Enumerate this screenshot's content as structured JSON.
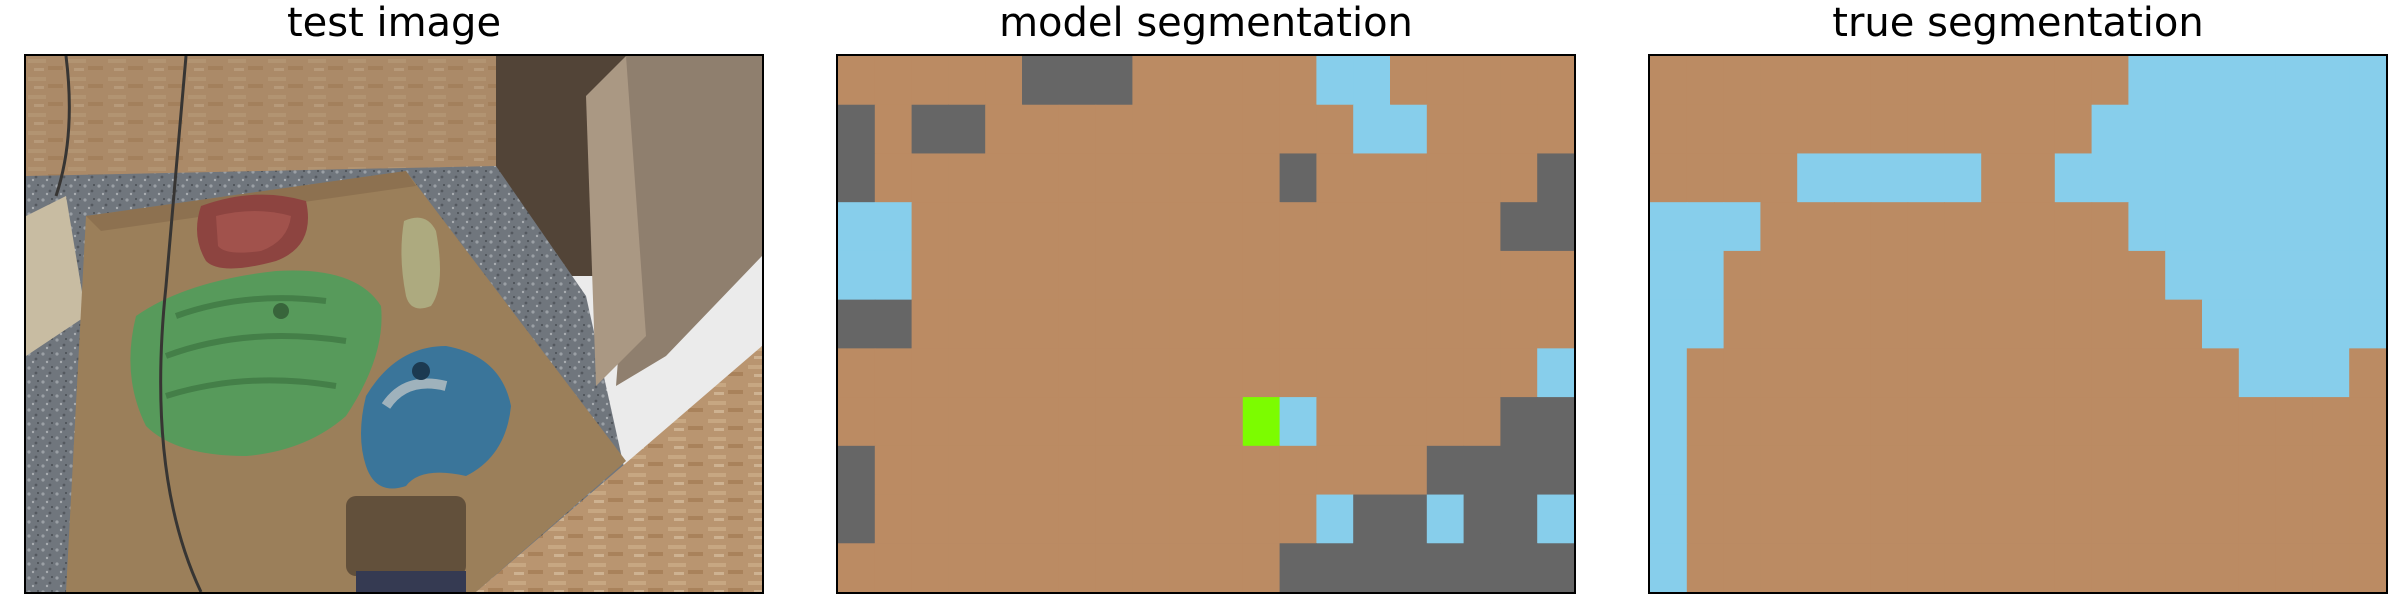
{
  "panels": [
    {
      "title": "test image"
    },
    {
      "title": "model segmentation"
    },
    {
      "title": "true segmentation"
    }
  ],
  "colors": {
    "background": "#bb8b63",
    "gray": "#666666",
    "sky": "#87ceeb",
    "green": "#7cfc00"
  },
  "icons": {
    "photo_objects": [
      "red-hold",
      "yellow-hold",
      "green-hold",
      "blue-hold",
      "wooden-board",
      "gravel",
      "osb-wall",
      "camera-shadow"
    ]
  },
  "model_grid": {
    "rows": 11,
    "cols": 20,
    "cells": [
      "BBBBBGGGBBBBBSSBBBBB",
      "GBGGBBBBBBBBBBSSBBBB",
      "GBBBBBBBBBBBGBBBBBBG",
      "SSBBBBBBBBBBBBBBBBGG",
      "SSBBBBBBBBBBBBBBBBBB",
      "GGBBBBBBBBBBBBBBBBBB",
      "BBBBBBBBBBBBBBBBBBBS",
      "BBBBBBBBBBBLSBBBBBGG",
      "GBBBBBBBBBBBBBBBGGGG",
      "GBBBBBBBBBBBBSGGSGGS",
      "BBBBBBBBBBBBGGGGGGGG"
    ]
  },
  "true_grid": {
    "rows": 11,
    "cols": 20,
    "cells": [
      "BBBBBBBBBBBBBSSSSSSS",
      "BBBBBBBBBBBBSSSSSSSS",
      "BBBBSSSSSBBSSSSSSSSS",
      "SSSBBBBBBBBBBSSSSSSS",
      "SSBBBBBBBBBBBBSSSSSS",
      "SSBBBBBBBBBBBBBSSSSS",
      "SBBBBBBBBBBBBBBBSSSB",
      "SBBBBBBBBBBBBBBBBBBB",
      "SBBBBBBBBBBBBBBBBBBB",
      "SBBBBBBBBBBBBBBBBBBB",
      "SBBBBBBBBBBBBBBBBBBB"
    ]
  }
}
